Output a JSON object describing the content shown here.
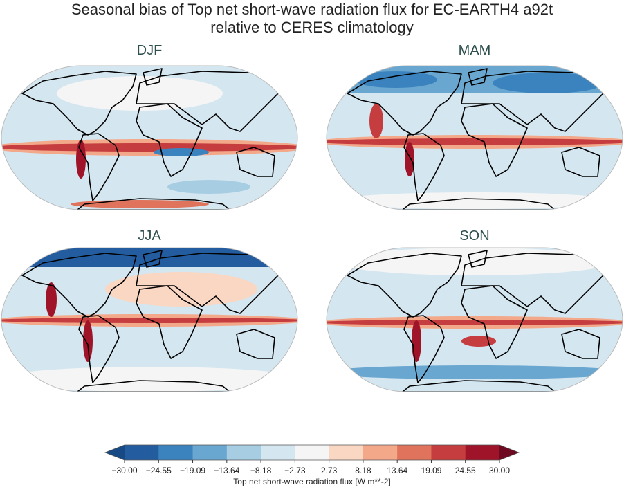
{
  "title": [
    "Seasonal bias of Top net short-wave radiation flux for EC-EARTH4 a92t",
    "relative to CERES climatology"
  ],
  "panels": [
    {
      "label": "DJF"
    },
    {
      "label": "MAM"
    },
    {
      "label": "JJA"
    },
    {
      "label": "SON"
    }
  ],
  "colorbar": {
    "label": "Top net short-wave radiation flux [W m**-2]",
    "ticks": [
      {
        "value": -30,
        "label": "−30.00"
      },
      {
        "value": -24.55,
        "label": "−24.55"
      },
      {
        "value": -19.09,
        "label": "−19.09"
      },
      {
        "value": -13.64,
        "label": "−13.64"
      },
      {
        "value": -8.18,
        "label": "−8.18"
      },
      {
        "value": -2.73,
        "label": "−2.73"
      },
      {
        "value": 2.73,
        "label": "2.73"
      },
      {
        "value": 8.18,
        "label": "8.18"
      },
      {
        "value": 13.64,
        "label": "13.64"
      },
      {
        "value": 19.09,
        "label": "19.09"
      },
      {
        "value": 24.55,
        "label": "24.55"
      },
      {
        "value": 30,
        "label": "30.00"
      }
    ],
    "colors": [
      "#235d9f",
      "#3b83be",
      "#6aa7d0",
      "#a7cde3",
      "#d4e6f0",
      "#f5f5f5",
      "#fad7c3",
      "#f3a88a",
      "#e0735b",
      "#c53d3f",
      "#9f1428"
    ],
    "under_color": "#174a85",
    "over_color": "#6d0a22"
  }
}
